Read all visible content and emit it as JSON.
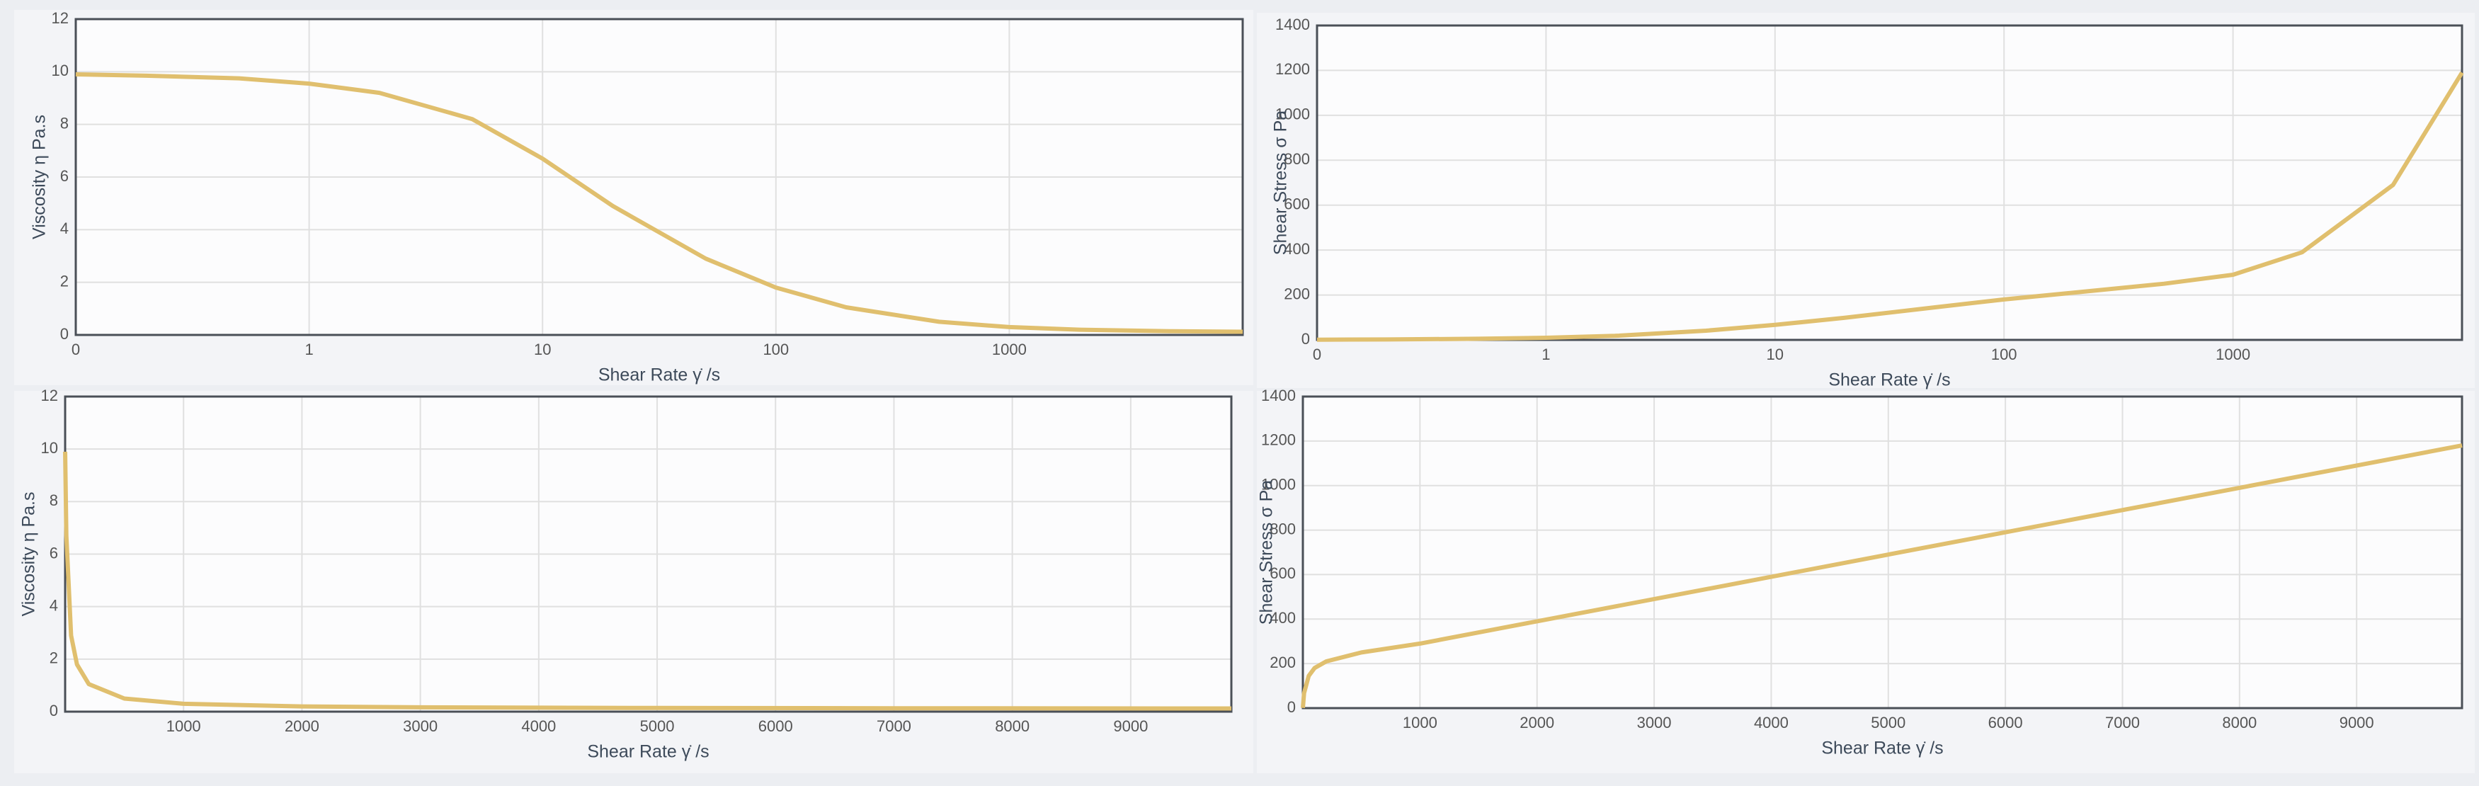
{
  "chart_data": [
    {
      "type": "line",
      "xscale": "log",
      "grid": true,
      "x_label": "Shear Rate γ̇ /s",
      "y_label": "Viscosity η Pa.s",
      "xlim": [
        0.1,
        10000
      ],
      "xticks": [
        {
          "value": 0.1,
          "label": "0"
        },
        1,
        10,
        100,
        1000
      ],
      "ylim": [
        0,
        12
      ],
      "yticks": [
        0,
        2,
        4,
        6,
        8,
        10,
        12
      ],
      "x": [
        0.1,
        0.2,
        0.5,
        1,
        2,
        5,
        10,
        20,
        50,
        100,
        200,
        500,
        1000,
        2000,
        5000,
        10000
      ],
      "series": [
        {
          "color": "#e0bf6e",
          "values": [
            9.9,
            9.85,
            9.75,
            9.55,
            9.2,
            8.2,
            6.7,
            4.9,
            2.9,
            1.8,
            1.05,
            0.5,
            0.3,
            0.2,
            0.14,
            0.12
          ]
        }
      ]
    },
    {
      "type": "line",
      "xscale": "log",
      "grid": true,
      "x_label": "Shear Rate γ̇ /s",
      "y_label": "Shear Stress σ Pa",
      "xlim": [
        0.1,
        10000
      ],
      "xticks": [
        {
          "value": 0.1,
          "label": "0"
        },
        1,
        10,
        100,
        1000
      ],
      "ylim": [
        0,
        1400
      ],
      "yticks": [
        0,
        200,
        400,
        600,
        800,
        1000,
        1200,
        1400
      ],
      "x": [
        0.1,
        0.2,
        0.5,
        1,
        2,
        5,
        10,
        20,
        50,
        100,
        200,
        500,
        1000,
        2000,
        5000,
        10000
      ],
      "series": [
        {
          "color": "#e0bf6e",
          "values": [
            1,
            2,
            5,
            9.5,
            18,
            41,
            67,
            98,
            145,
            180,
            210,
            250,
            290,
            390,
            690,
            1190
          ]
        }
      ]
    },
    {
      "type": "line",
      "xscale": "linear",
      "grid": true,
      "x_label": "Shear Rate γ̇ /s",
      "y_label": "Viscosity η Pa.s",
      "xlim": [
        0,
        9850
      ],
      "xticks": [
        1000,
        2000,
        3000,
        4000,
        5000,
        6000,
        7000,
        8000,
        9000
      ],
      "ylim": [
        0,
        12
      ],
      "yticks": [
        0,
        2,
        4,
        6,
        8,
        10,
        12
      ],
      "x": [
        0.1,
        1,
        10,
        50,
        100,
        200,
        500,
        1000,
        2000,
        3000,
        5000,
        7000,
        9850
      ],
      "series": [
        {
          "color": "#e0bf6e",
          "values": [
            9.9,
            9.55,
            6.7,
            2.9,
            1.8,
            1.05,
            0.5,
            0.3,
            0.2,
            0.165,
            0.14,
            0.13,
            0.12
          ]
        }
      ]
    },
    {
      "type": "line",
      "xscale": "linear",
      "grid": true,
      "x_label": "Shear Rate γ̇ /s",
      "y_label": "Shear Stress σ Pa",
      "xlim": [
        0,
        9900
      ],
      "xticks": [
        1000,
        2000,
        3000,
        4000,
        5000,
        6000,
        7000,
        8000,
        9000
      ],
      "ylim": [
        0,
        1400
      ],
      "yticks": [
        0,
        200,
        400,
        600,
        800,
        1000,
        1200,
        1400
      ],
      "x": [
        0.1,
        10,
        50,
        100,
        200,
        500,
        1000,
        2000,
        4000,
        6000,
        8000,
        9900
      ],
      "series": [
        {
          "color": "#e0bf6e",
          "values": [
            1,
            67,
            145,
            180,
            210,
            250,
            290,
            390,
            590,
            790,
            990,
            1180
          ]
        }
      ]
    }
  ]
}
